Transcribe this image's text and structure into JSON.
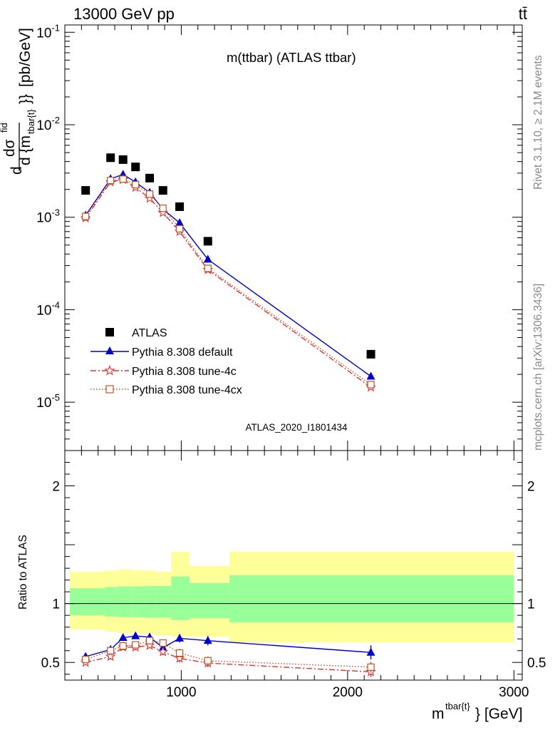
{
  "header": {
    "left": "13000 GeV pp",
    "right": "tt̄"
  },
  "side_labels": {
    "rivet": "Rivet 3.1.10, ≥ 2.1M events",
    "mcplots": "mcplots.cern.ch [arXiv:1306.3436]"
  },
  "chart_data": [
    {
      "type": "scatter",
      "panel": "main",
      "title": "m(ttbar) (ATLAS ttbar)",
      "watermark": "ATLAS_2020_I1801434",
      "ylabel": {
        "num_d": "d",
        "num_sigma": "dσ",
        "num_sup": "fid",
        "den": "d {m",
        "den_sub": "tbar{t}",
        "den_close": "}}",
        "units": "[pb/GeV]"
      },
      "yscale": "log",
      "ylim": [
        3e-06,
        0.12
      ],
      "xlim": [
        300,
        3050
      ],
      "ytick_base": "10",
      "yticks": [
        {
          "value": 1e-05,
          "exp": "-5"
        },
        {
          "value": 0.0001,
          "exp": "-4"
        },
        {
          "value": 0.001,
          "exp": "-3"
        },
        {
          "value": 0.01,
          "exp": "-2"
        },
        {
          "value": 0.1,
          "exp": "-1"
        }
      ],
      "legend_position": "lower-left",
      "series": [
        {
          "name": "ATLAS",
          "color": "#000000",
          "marker": "square",
          "line": "none",
          "x": [
            425,
            575,
            650,
            725,
            810,
            890,
            990,
            1160,
            2140
          ],
          "y": [
            0.00195,
            0.0044,
            0.0042,
            0.0035,
            0.00265,
            0.00195,
            0.0013,
            0.00055,
            3.3e-05
          ]
        },
        {
          "name": "Pythia 8.308 default",
          "color": "#0000cc",
          "marker": "triangle",
          "line": "solid",
          "x": [
            425,
            575,
            650,
            725,
            810,
            890,
            990,
            1160,
            2140
          ],
          "y": [
            0.00105,
            0.0026,
            0.0029,
            0.0024,
            0.00185,
            0.00122,
            0.00087,
            0.00035,
            1.9e-05
          ]
        },
        {
          "name": "Pythia 8.308 tune-4c",
          "color": "#dd3333",
          "marker": "star",
          "line": "dashdot",
          "x": [
            425,
            575,
            650,
            725,
            810,
            890,
            990,
            1160,
            2140
          ],
          "y": [
            0.00098,
            0.0024,
            0.00255,
            0.0021,
            0.0016,
            0.00112,
            0.0007,
            0.00027,
            1.45e-05
          ]
        },
        {
          "name": "Pythia 8.308 tune-4cx",
          "color": "#bb5522",
          "marker": "open-square",
          "line": "dotted",
          "x": [
            425,
            575,
            650,
            725,
            810,
            890,
            990,
            1160,
            2140
          ],
          "y": [
            0.00102,
            0.0025,
            0.00258,
            0.00225,
            0.00178,
            0.00125,
            0.00075,
            0.00028,
            1.55e-05
          ]
        }
      ]
    },
    {
      "type": "scatter",
      "panel": "ratio",
      "ylabel": "Ratio to ATLAS",
      "xlabel_main": "m",
      "xlabel_sup": "tbar{t}",
      "xlabel_tail": "} [GeV]",
      "xlim": [
        300,
        3050
      ],
      "ylim": [
        0.35,
        2.3
      ],
      "yticks": [
        {
          "value": 0.5,
          "label": "0.5"
        },
        {
          "value": 1,
          "label": "1"
        },
        {
          "value": 2,
          "label": "2"
        }
      ],
      "xticks": [
        {
          "value": 1000,
          "label": "1000"
        },
        {
          "value": 2000,
          "label": "2000"
        },
        {
          "value": 3000,
          "label": "3000"
        }
      ],
      "bands": {
        "stat_color": "#99ff99",
        "total_color": "#ffff99",
        "bins": [
          {
            "x0": 330,
            "x1": 540,
            "stat_lo": 0.9,
            "stat_hi": 1.13,
            "tot_lo": 0.78,
            "tot_hi": 1.27
          },
          {
            "x0": 540,
            "x1": 620,
            "stat_lo": 0.89,
            "stat_hi": 1.14,
            "tot_lo": 0.76,
            "tot_hi": 1.28
          },
          {
            "x0": 620,
            "x1": 700,
            "stat_lo": 0.885,
            "stat_hi": 1.145,
            "tot_lo": 0.75,
            "tot_hi": 1.29
          },
          {
            "x0": 700,
            "x1": 780,
            "stat_lo": 0.885,
            "stat_hi": 1.145,
            "tot_lo": 0.745,
            "tot_hi": 1.285
          },
          {
            "x0": 780,
            "x1": 850,
            "stat_lo": 0.88,
            "stat_hi": 1.15,
            "tot_lo": 0.74,
            "tot_hi": 1.28
          },
          {
            "x0": 850,
            "x1": 940,
            "stat_lo": 0.88,
            "stat_hi": 1.15,
            "tot_lo": 0.73,
            "tot_hi": 1.27
          },
          {
            "x0": 940,
            "x1": 1050,
            "stat_lo": 0.86,
            "stat_hi": 1.23,
            "tot_lo": 0.72,
            "tot_hi": 1.44
          },
          {
            "x0": 1050,
            "x1": 1290,
            "stat_lo": 0.875,
            "stat_hi": 1.175,
            "tot_lo": 0.72,
            "tot_hi": 1.32
          },
          {
            "x0": 1290,
            "x1": 3000,
            "stat_lo": 0.84,
            "stat_hi": 1.24,
            "tot_lo": 0.67,
            "tot_hi": 1.44
          }
        ]
      },
      "series": [
        {
          "name": "Pythia 8.308 default",
          "color": "#0000cc",
          "marker": "triangle",
          "line": "solid",
          "x": [
            425,
            575,
            650,
            725,
            810,
            890,
            990,
            1160,
            2140
          ],
          "y": [
            0.55,
            0.61,
            0.71,
            0.725,
            0.715,
            0.625,
            0.705,
            0.685,
            0.585
          ],
          "err": [
            0.02,
            0.025,
            0.025,
            0.025,
            0.03,
            0.03,
            0.035,
            0.04,
            0.06
          ]
        },
        {
          "name": "Pythia 8.308 tune-4c",
          "color": "#dd3333",
          "marker": "star",
          "line": "dashdot",
          "x": [
            425,
            575,
            650,
            725,
            810,
            890,
            990,
            1160,
            2140
          ],
          "y": [
            0.5,
            0.55,
            0.63,
            0.63,
            0.645,
            0.59,
            0.535,
            0.495,
            0.42
          ],
          "err": [
            0.02,
            0.025,
            0.025,
            0.025,
            0.025,
            0.03,
            0.035,
            0.035,
            0.045
          ]
        },
        {
          "name": "Pythia 8.308 tune-4cx",
          "color": "#bb5522",
          "marker": "open-square",
          "line": "dotted",
          "x": [
            425,
            575,
            650,
            725,
            810,
            890,
            990,
            1160,
            2140
          ],
          "y": [
            0.525,
            0.6,
            0.64,
            0.65,
            0.685,
            0.665,
            0.58,
            0.515,
            0.46
          ],
          "err": [
            0.02,
            0.025,
            0.025,
            0.025,
            0.025,
            0.03,
            0.035,
            0.035,
            0.045
          ]
        }
      ]
    }
  ]
}
